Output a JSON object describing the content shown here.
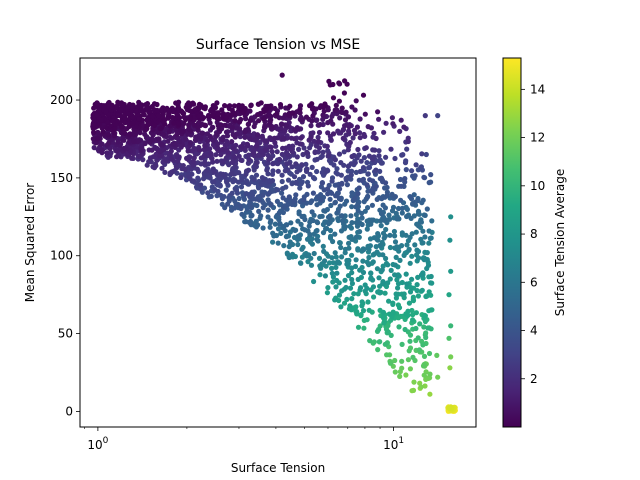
{
  "chart_data": {
    "type": "scatter",
    "title": "Surface Tension vs MSE",
    "xlabel": "Surface Tension",
    "ylabel": "Mean Squared Error",
    "xscale": "log",
    "xlim": [
      0.87,
      19.0
    ],
    "ylim": [
      -10,
      227
    ],
    "x_ticks": [
      {
        "value": 1,
        "base": "10",
        "exp": "0"
      },
      {
        "value": 10,
        "base": "10",
        "exp": "1"
      }
    ],
    "y_ticks": [
      0,
      50,
      100,
      150,
      200
    ],
    "colorbar": {
      "label": "Surface Tension Average",
      "colormap": "viridis",
      "range": [
        0.0,
        15.3
      ],
      "ticks": [
        "2",
        "4",
        "6",
        "8",
        "10",
        "12",
        "14"
      ],
      "tick_values": [
        2,
        4,
        6,
        8,
        10,
        12,
        14
      ]
    },
    "grid": false,
    "point_color_encodes": "surface_tension_average",
    "density_regions": [
      {
        "region": "upper band",
        "x_range": [
          0.96,
          12.5
        ],
        "y_range": [
          155,
          200
        ],
        "color_value_range": [
          0.5,
          3.5
        ]
      },
      {
        "region": "main body",
        "x_range": [
          1.2,
          12.5
        ],
        "y_range": [
          10,
          160
        ],
        "color_value_range": [
          2,
          11
        ]
      },
      {
        "region": "lower tip",
        "x_range": [
          8,
          13.5
        ],
        "y_range": [
          0,
          25
        ],
        "color_value_range": [
          10,
          13
        ]
      },
      {
        "region": "right cluster",
        "x_range": [
          15,
          16.3
        ],
        "y_range": [
          0,
          125
        ],
        "color_value_range": [
          9,
          15
        ]
      }
    ],
    "notable_points": [
      {
        "x": 4.2,
        "y": 216,
        "c": 0.2
      },
      {
        "x": 15.6,
        "y": 125,
        "c": 7.5
      },
      {
        "x": 15.5,
        "y": 110,
        "c": 7.6
      },
      {
        "x": 15.6,
        "y": 90,
        "c": 8.2
      },
      {
        "x": 15.4,
        "y": 75,
        "c": 9.0
      },
      {
        "x": 15.6,
        "y": 55,
        "c": 10.2
      },
      {
        "x": 15.4,
        "y": 47,
        "c": 11.0
      },
      {
        "x": 15.6,
        "y": 35,
        "c": 12.1
      },
      {
        "x": 15.5,
        "y": 28,
        "c": 12.6
      },
      {
        "x": 14.0,
        "y": 36,
        "c": 11.5
      },
      {
        "x": 14.1,
        "y": 22,
        "c": 12.0
      },
      {
        "x": 13.5,
        "y": 115,
        "c": 6.5
      },
      {
        "x": 12.8,
        "y": 190,
        "c": 2.5
      },
      {
        "x": 14.1,
        "y": 190,
        "c": 3.0
      },
      {
        "x": 12.9,
        "y": 165,
        "c": 3.2
      },
      {
        "x": 13.2,
        "y": 147,
        "c": 4.0
      },
      {
        "x": 13.0,
        "y": 130,
        "c": 4.6
      }
    ]
  }
}
